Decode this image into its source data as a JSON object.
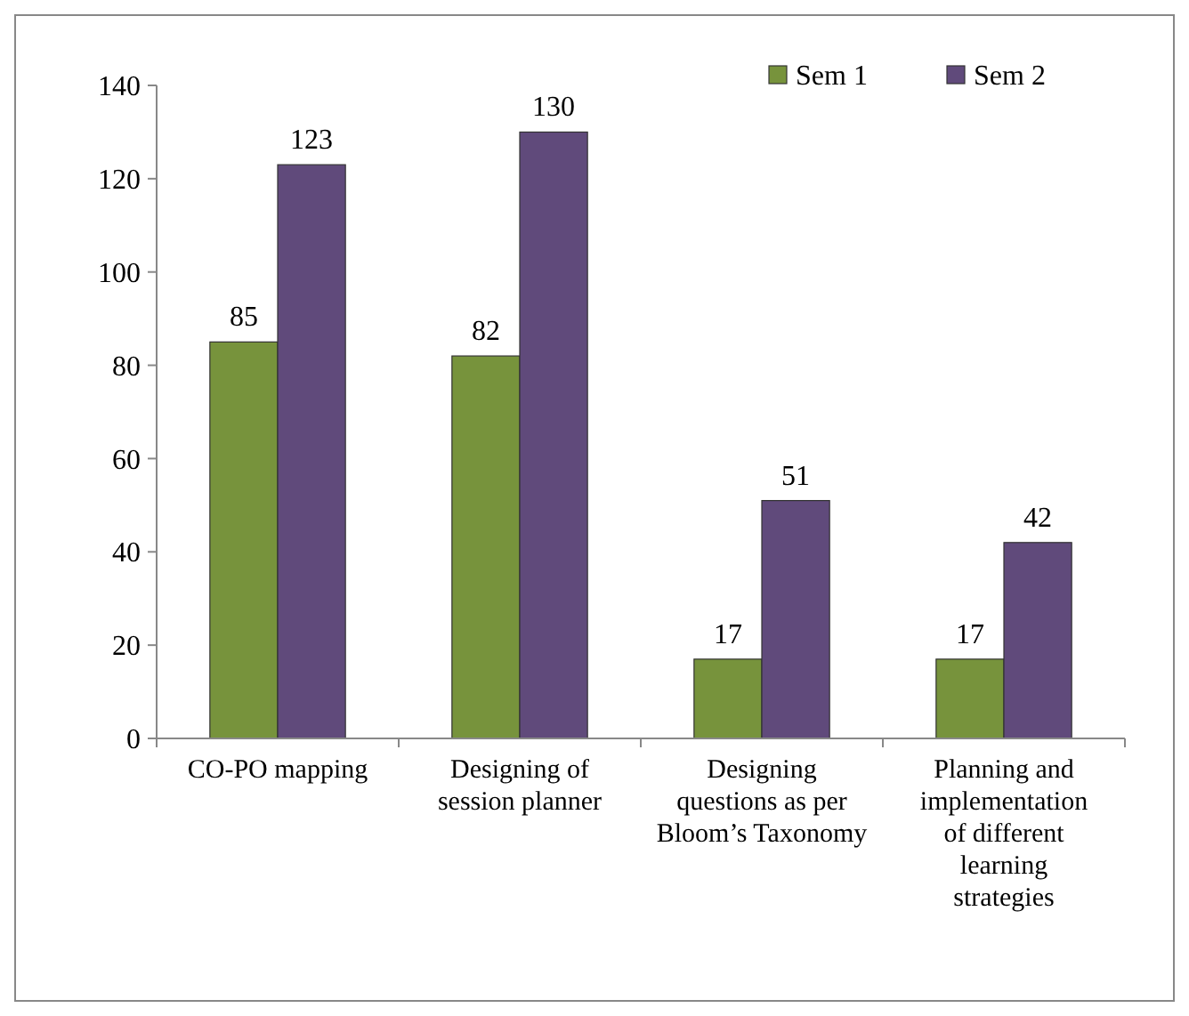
{
  "chart_data": {
    "type": "bar",
    "categories": [
      "CO-PO mapping",
      "Designing of session planner",
      "Designing questions as per Bloom’s Taxonomy",
      "Planning and implementation of different learning strategies"
    ],
    "series": [
      {
        "name": "Sem 1",
        "color": "#77933c",
        "values": [
          85,
          82,
          17,
          17
        ]
      },
      {
        "name": "Sem 2",
        "color": "#604a7b",
        "values": [
          123,
          130,
          51,
          42
        ]
      }
    ],
    "ylim": [
      0,
      140
    ],
    "yticks": [
      0,
      20,
      40,
      60,
      80,
      100,
      120,
      140
    ],
    "data_labels": true,
    "legend": "top right",
    "grid": false
  }
}
